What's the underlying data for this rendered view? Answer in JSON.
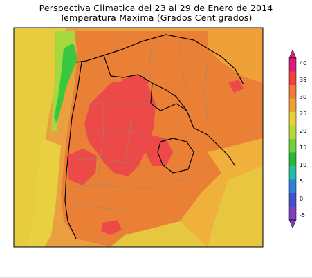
{
  "title": {
    "line1": "Perspectiva Climatica del 23 al 29 de Enero de 2014",
    "line2": "Temperatura Maxima (Grados Centigrados)"
  },
  "colorbar": {
    "labels": [
      "40",
      "35",
      "30",
      "25",
      "20",
      "15",
      "10",
      "5",
      "0",
      "-5"
    ],
    "colors": [
      "#d81e78",
      "#f04040",
      "#f07838",
      "#f0a030",
      "#e8d038",
      "#b8d838",
      "#70d038",
      "#28b838",
      "#20c0a0",
      "#3080d8",
      "#4050d0",
      "#8040c0"
    ]
  },
  "map_colors": {
    "ocean": "#e8a038",
    "yellow": "#e8d040",
    "light_orange": "#f0a038",
    "orange": "#e98035",
    "red": "#ec4a48",
    "light_green": "#a8d840",
    "green": "#38c840",
    "pale_yellow": "#f0e060"
  }
}
